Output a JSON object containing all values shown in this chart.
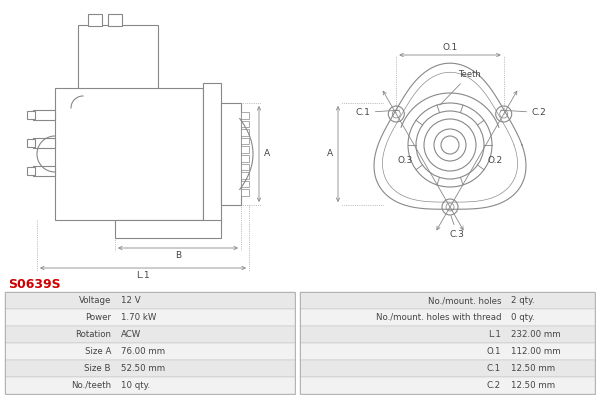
{
  "title": "S0639S",
  "title_color": "#cc0000",
  "background_color": "#ffffff",
  "table_left": [
    [
      "Voltage",
      "12 V"
    ],
    [
      "Power",
      "1.70 kW"
    ],
    [
      "Rotation",
      "ACW"
    ],
    [
      "Size A",
      "76.00 mm"
    ],
    [
      "Size B",
      "52.50 mm"
    ],
    [
      "No./teeth",
      "10 qty."
    ]
  ],
  "table_right": [
    [
      "No./mount. holes",
      "2 qty."
    ],
    [
      "No./mount. holes with thread",
      "0 qty."
    ],
    [
      "L.1",
      "232.00 mm"
    ],
    [
      "O.1",
      "112.00 mm"
    ],
    [
      "C.1",
      "12.50 mm"
    ],
    [
      "C.2",
      "12.50 mm"
    ]
  ],
  "row_colors": [
    "#e8e8e8",
    "#f2f2f2"
  ],
  "line_color": "#888888",
  "dim_color": "#444444",
  "teeth_label": "Teeth"
}
